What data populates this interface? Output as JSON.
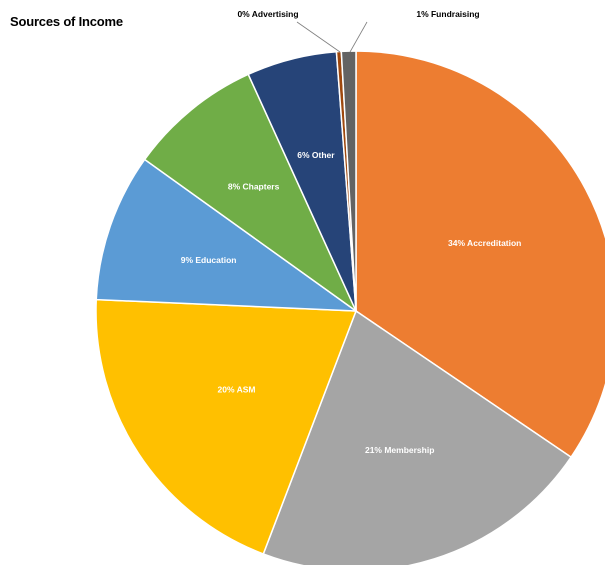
{
  "chart_data": {
    "type": "pie",
    "title": "Sources of Income",
    "slices": [
      {
        "label": "34% Accreditation",
        "value": 34.5,
        "color": "#ED7D31"
      },
      {
        "label": "21% Membership",
        "value": 21.3,
        "color": "#A5A5A5"
      },
      {
        "label": "20% ASM",
        "value": 19.9,
        "color": "#FFC000"
      },
      {
        "label": "9% Education",
        "value": 9.2,
        "color": "#5B9BD5"
      },
      {
        "label": "8% Chapters",
        "value": 8.3,
        "color": "#70AD47"
      },
      {
        "label": "6% Other",
        "value": 5.6,
        "color": "#264478"
      },
      {
        "label": "0% Advertising",
        "value": 0.3,
        "color": "#9E480E"
      },
      {
        "label": "1% Fundraising",
        "value": 0.9,
        "color": "#636363"
      }
    ],
    "legend": "none"
  }
}
